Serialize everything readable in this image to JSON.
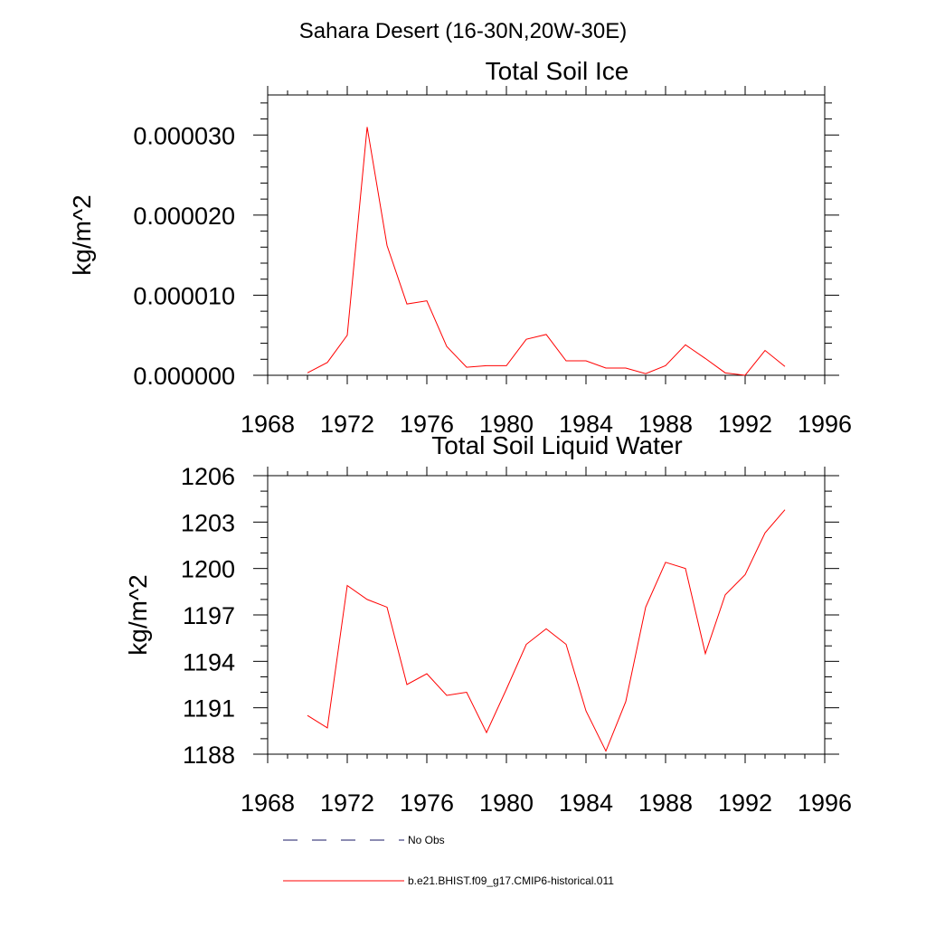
{
  "title": "Sahara Desert (16-30N,20W-30E)",
  "colors": {
    "model_line": "#ff0000",
    "obs_line": "#1a1a66",
    "axes": "#000000"
  },
  "chart_data": [
    {
      "type": "line",
      "title": "Total Soil Ice",
      "xlabel": "",
      "ylabel": "kg/m^2",
      "xlim": [
        1968,
        1996
      ],
      "ylim": [
        0,
        3.5e-05
      ],
      "xticks": [
        1968,
        1972,
        1976,
        1980,
        1984,
        1988,
        1992,
        1996
      ],
      "xtick_labels": [
        "1968",
        "1972",
        "1976",
        "1980",
        "1984",
        "1988",
        "1992",
        "1996"
      ],
      "yticks": [
        0,
        1e-05,
        2e-05,
        3e-05
      ],
      "ytick_labels": [
        "0.000000",
        "0.000010",
        "0.000020",
        "0.000030"
      ],
      "series": [
        {
          "name": "b.e21.BHIST.f09_g17.CMIP6-historical.011",
          "x": [
            1970,
            1971,
            1972,
            1973,
            1974,
            1975,
            1976,
            1977,
            1978,
            1979,
            1980,
            1981,
            1982,
            1983,
            1984,
            1985,
            1986,
            1987,
            1988,
            1989,
            1990,
            1991,
            1992,
            1993,
            1994
          ],
          "values": [
            3e-07,
            1.6e-06,
            5e-06,
            3.1e-05,
            1.62e-05,
            8.9e-06,
            9.3e-06,
            3.6e-06,
            1e-06,
            1.2e-06,
            1.2e-06,
            4.5e-06,
            5.1e-06,
            1.8e-06,
            1.8e-06,
            9e-07,
            9e-07,
            2e-07,
            1.2e-06,
            3.8e-06,
            2.1e-06,
            3e-07,
            0.0,
            3.1e-06,
            1.1e-06
          ]
        }
      ]
    },
    {
      "type": "line",
      "title": "Total Soil Liquid Water",
      "xlabel": "",
      "ylabel": "kg/m^2",
      "xlim": [
        1968,
        1996
      ],
      "ylim": [
        1188,
        1206
      ],
      "xticks": [
        1968,
        1972,
        1976,
        1980,
        1984,
        1988,
        1992,
        1996
      ],
      "xtick_labels": [
        "1968",
        "1972",
        "1976",
        "1980",
        "1984",
        "1988",
        "1992",
        "1996"
      ],
      "yticks": [
        1188,
        1191,
        1194,
        1197,
        1200,
        1203,
        1206
      ],
      "ytick_labels": [
        "1188",
        "1191",
        "1194",
        "1197",
        "1200",
        "1203",
        "1206"
      ],
      "series": [
        {
          "name": "b.e21.BHIST.f09_g17.CMIP6-historical.011",
          "x": [
            1970,
            1971,
            1972,
            1973,
            1974,
            1975,
            1976,
            1977,
            1978,
            1979,
            1980,
            1981,
            1982,
            1983,
            1984,
            1985,
            1986,
            1987,
            1988,
            1989,
            1990,
            1991,
            1992,
            1993,
            1994
          ],
          "values": [
            1190.5,
            1189.7,
            1198.9,
            1198.0,
            1197.5,
            1192.5,
            1193.2,
            1191.8,
            1192.0,
            1189.4,
            1192.2,
            1195.1,
            1196.1,
            1195.1,
            1190.8,
            1188.2,
            1191.4,
            1197.5,
            1200.4,
            1200.0,
            1194.5,
            1198.3,
            1199.6,
            1202.3,
            1203.8
          ]
        }
      ]
    }
  ],
  "legend": {
    "items": [
      {
        "label": "No Obs",
        "style": "dashed",
        "color": "#1a1a66"
      },
      {
        "label": "b.e21.BHIST.f09_g17.CMIP6-historical.011",
        "style": "solid",
        "color": "#ff0000"
      }
    ]
  }
}
